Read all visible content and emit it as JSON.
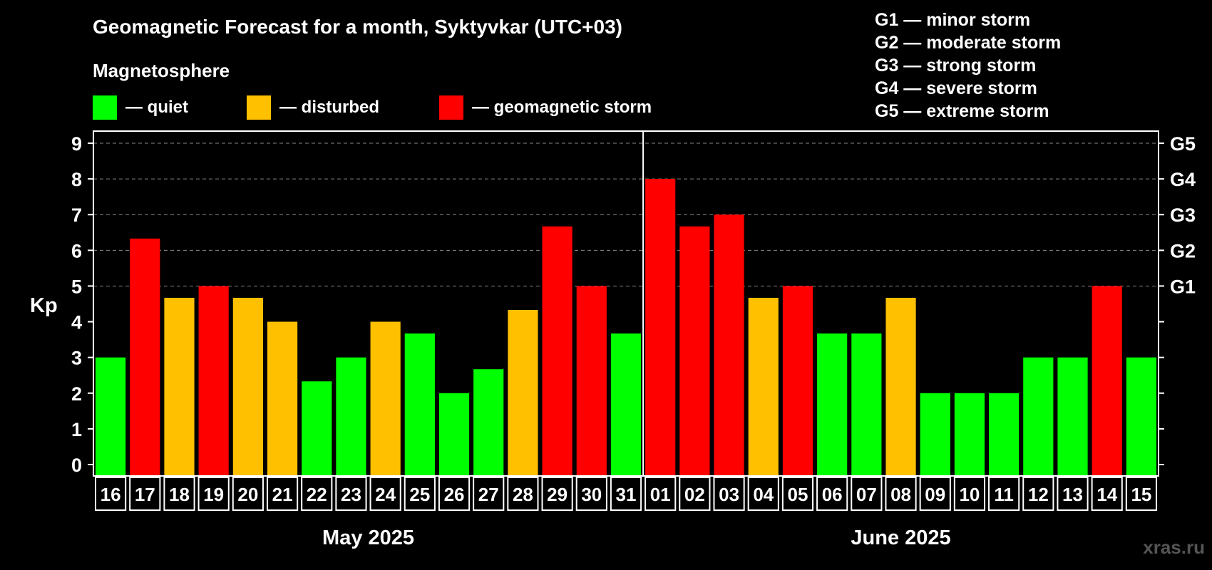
{
  "title": "Geomagnetic Forecast for a month, Syktyvkar (UTC+03)",
  "subtitle": "Magnetosphere",
  "legend": [
    {
      "label": "— quiet",
      "color": "#00ff00"
    },
    {
      "label": "— disturbed",
      "color": "#ffc000"
    },
    {
      "label": "— geomagnetic storm",
      "color": "#ff0000"
    }
  ],
  "g_legend": [
    "G1 — minor storm",
    "G2 — moderate storm",
    "G3 — strong storm",
    "G4 — severe storm",
    "G5 — extreme storm"
  ],
  "watermark": "xras.ru",
  "chart_data": {
    "type": "bar",
    "ylabel": "Kp",
    "ylim": [
      0,
      9
    ],
    "yticks": [
      0,
      1,
      2,
      3,
      4,
      5,
      6,
      7,
      8,
      9
    ],
    "right_ticks": [
      {
        "value": 5,
        "label": "G1"
      },
      {
        "value": 6,
        "label": "G2"
      },
      {
        "value": 7,
        "label": "G3"
      },
      {
        "value": 8,
        "label": "G4"
      },
      {
        "value": 9,
        "label": "G5"
      }
    ],
    "grid": "dashed horizontal at 5-9",
    "categories": [
      "16",
      "17",
      "18",
      "19",
      "20",
      "21",
      "22",
      "23",
      "24",
      "25",
      "26",
      "27",
      "28",
      "29",
      "30",
      "31",
      "01",
      "02",
      "03",
      "04",
      "05",
      "06",
      "07",
      "08",
      "09",
      "10",
      "11",
      "12",
      "13",
      "14",
      "15"
    ],
    "values": [
      3,
      6.33,
      4.67,
      5,
      4.67,
      4,
      2.33,
      3,
      4,
      3.67,
      2,
      2.67,
      4.33,
      6.67,
      5,
      3.67,
      8,
      6.67,
      7,
      4.67,
      5,
      3.67,
      3.67,
      4.67,
      2,
      2,
      2,
      3,
      3,
      5,
      3
    ],
    "levels": [
      "quiet",
      "storm",
      "disturbed",
      "storm",
      "disturbed",
      "disturbed",
      "quiet",
      "quiet",
      "disturbed",
      "quiet",
      "quiet",
      "quiet",
      "disturbed",
      "storm",
      "storm",
      "quiet",
      "storm",
      "storm",
      "storm",
      "disturbed",
      "storm",
      "quiet",
      "quiet",
      "disturbed",
      "quiet",
      "quiet",
      "quiet",
      "quiet",
      "quiet",
      "storm",
      "quiet"
    ],
    "level_colors": {
      "quiet": "#00ff00",
      "disturbed": "#ffc000",
      "storm": "#ff0000"
    },
    "months": [
      {
        "label": "May 2025",
        "start": 0,
        "count": 16
      },
      {
        "label": "June 2025",
        "start": 16,
        "count": 15
      }
    ]
  }
}
